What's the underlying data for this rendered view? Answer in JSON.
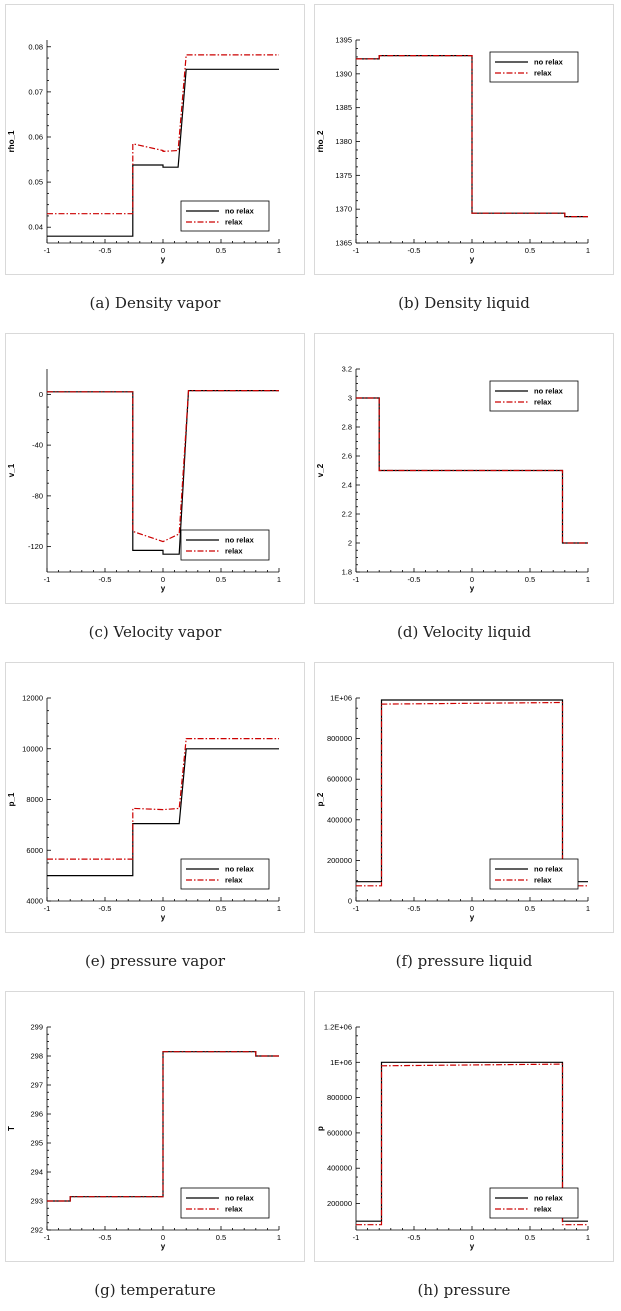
{
  "chart_data": [
    {
      "type": "line",
      "caption": "(a) Density vapor",
      "xlabel": "y",
      "ylabel": "rho_1",
      "xlim": [
        -1,
        1
      ],
      "ylim": [
        0.0365,
        0.0815
      ],
      "xticks": [
        -1,
        -0.5,
        0,
        0.5,
        1
      ],
      "xtick_labels": [
        "-1",
        "-0.5",
        "0",
        "0.5",
        "1"
      ],
      "yticks": [
        0.04,
        0.05,
        0.06,
        0.07,
        0.08
      ],
      "ytick_labels": [
        "0.04",
        "0.05",
        "0.06",
        "0.07",
        "0.08"
      ],
      "legend": "bottom-right",
      "series": [
        {
          "name": "no relax",
          "color": "#000000",
          "style": "solid",
          "x": [
            -1,
            -0.26,
            -0.26,
            0,
            0,
            0.13,
            0.2,
            0.2,
            1
          ],
          "y": [
            0.038,
            0.038,
            0.0538,
            0.0538,
            0.0533,
            0.0533,
            0.075,
            0.075,
            0.075
          ]
        },
        {
          "name": "relax",
          "color": "#cc0000",
          "style": "dashdot",
          "x": [
            -1,
            -0.26,
            -0.26,
            0,
            0,
            0.13,
            0.2,
            0.2,
            1
          ],
          "y": [
            0.043,
            0.043,
            0.0585,
            0.057,
            0.0568,
            0.057,
            0.0782,
            0.0782,
            0.0782
          ]
        }
      ]
    },
    {
      "type": "line",
      "caption": "(b) Density liquid",
      "xlabel": "y",
      "ylabel": "rho_2",
      "xlim": [
        -1,
        1
      ],
      "ylim": [
        1365,
        1395
      ],
      "xticks": [
        -1,
        -0.5,
        0,
        0.5,
        1
      ],
      "xtick_labels": [
        "-1",
        "-0.5",
        "0",
        "0.5",
        "1"
      ],
      "yticks": [
        1365,
        1370,
        1375,
        1380,
        1385,
        1390,
        1395
      ],
      "ytick_labels": [
        "1365",
        "1370",
        "1375",
        "1380",
        "1385",
        "1390",
        "1395"
      ],
      "legend": "top-right",
      "series": [
        {
          "name": "no relax",
          "color": "#000000",
          "style": "solid",
          "x": [
            -1,
            -0.8,
            -0.8,
            0,
            0,
            0.8,
            0.8,
            1
          ],
          "y": [
            1392.2,
            1392.2,
            1392.7,
            1392.7,
            1369.4,
            1369.4,
            1368.9,
            1368.9
          ]
        },
        {
          "name": "relax",
          "color": "#cc0000",
          "style": "dashdot",
          "x": [
            -1,
            -0.8,
            -0.8,
            0,
            0,
            0.8,
            0.8,
            1
          ],
          "y": [
            1392.2,
            1392.2,
            1392.7,
            1392.7,
            1369.4,
            1369.4,
            1368.9,
            1368.9
          ]
        }
      ]
    },
    {
      "type": "line",
      "caption": "(c) Velocity vapor",
      "xlabel": "y",
      "ylabel": "v_1",
      "xlim": [
        -1,
        1
      ],
      "ylim": [
        -140,
        20
      ],
      "xticks": [
        -1,
        -0.5,
        0,
        0.5,
        1
      ],
      "xtick_labels": [
        "-1",
        "-0.5",
        "0",
        "0.5",
        "1"
      ],
      "yticks": [
        -120,
        -80,
        -40,
        0
      ],
      "ytick_labels": [
        "-120",
        "-80",
        "-40",
        "0"
      ],
      "legend": "bottom-right",
      "series": [
        {
          "name": "no relax",
          "color": "#000000",
          "style": "solid",
          "x": [
            -1,
            -0.26,
            -0.26,
            0,
            0,
            0.14,
            0.22,
            1
          ],
          "y": [
            2,
            2,
            -123,
            -123,
            -126,
            -126,
            3,
            3
          ]
        },
        {
          "name": "relax",
          "color": "#cc0000",
          "style": "dashdot",
          "x": [
            -1,
            -0.26,
            -0.26,
            0,
            0.14,
            0.22,
            1
          ],
          "y": [
            2,
            2,
            -108,
            -116,
            -110,
            3,
            3
          ]
        }
      ]
    },
    {
      "type": "line",
      "caption": "(d) Velocity liquid",
      "xlabel": "y",
      "ylabel": "v_2",
      "xlim": [
        -1,
        1
      ],
      "ylim": [
        1.8,
        3.2
      ],
      "xticks": [
        -1,
        -0.5,
        0,
        0.5,
        1
      ],
      "xtick_labels": [
        "-1",
        "-0.5",
        "0",
        "0.5",
        "1"
      ],
      "yticks": [
        1.8,
        2,
        2.2,
        2.4,
        2.6,
        2.8,
        3,
        3.2
      ],
      "ytick_labels": [
        "1.8",
        "2",
        "2.2",
        "2.4",
        "2.6",
        "2.8",
        "3",
        "3.2"
      ],
      "legend": "top-right",
      "series": [
        {
          "name": "no relax",
          "color": "#000000",
          "style": "solid",
          "x": [
            -1,
            -0.8,
            -0.8,
            0.78,
            0.78,
            1
          ],
          "y": [
            3,
            3,
            2.5,
            2.5,
            2,
            2
          ]
        },
        {
          "name": "relax",
          "color": "#cc0000",
          "style": "dashdot",
          "x": [
            -1,
            -0.8,
            -0.8,
            0.78,
            0.78,
            1
          ],
          "y": [
            3,
            3,
            2.5,
            2.5,
            2,
            2
          ]
        }
      ]
    },
    {
      "type": "line",
      "caption": "(e) pressure vapor",
      "xlabel": "y",
      "ylabel": "p_1",
      "xlim": [
        -1,
        1
      ],
      "ylim": [
        4000,
        12000
      ],
      "xticks": [
        -1,
        -0.5,
        0,
        0.5,
        1
      ],
      "xtick_labels": [
        "-1",
        "-0.5",
        "0",
        "0.5",
        "1"
      ],
      "yticks": [
        4000,
        6000,
        8000,
        10000,
        12000
      ],
      "ytick_labels": [
        "4000",
        "6000",
        "8000",
        "10000",
        "12000"
      ],
      "legend": "bottom-right",
      "series": [
        {
          "name": "no relax",
          "color": "#000000",
          "style": "solid",
          "x": [
            -1,
            -0.26,
            -0.26,
            0.14,
            0.2,
            0.2,
            1
          ],
          "y": [
            5000,
            5000,
            7050,
            7050,
            10000,
            10000,
            10000
          ]
        },
        {
          "name": "relax",
          "color": "#cc0000",
          "style": "dashdot",
          "x": [
            -1,
            -0.26,
            -0.26,
            0,
            0.14,
            0.2,
            0.2,
            1
          ],
          "y": [
            5650,
            5650,
            7650,
            7600,
            7650,
            10400,
            10400,
            10400
          ]
        }
      ]
    },
    {
      "type": "line",
      "caption": "(f) pressure liquid",
      "xlabel": "y",
      "ylabel": "p_2",
      "xlim": [
        -1,
        1
      ],
      "ylim": [
        0,
        1000000
      ],
      "xticks": [
        -1,
        -0.5,
        0,
        0.5,
        1
      ],
      "xtick_labels": [
        "-1",
        "-0.5",
        "0",
        "0.5",
        "1"
      ],
      "yticks": [
        0,
        200000,
        400000,
        600000,
        800000,
        1000000
      ],
      "ytick_labels": [
        "0",
        "200000",
        "400000",
        "600000",
        "800000",
        "1E+06"
      ],
      "legend": "bottom-right",
      "series": [
        {
          "name": "no relax",
          "color": "#000000",
          "style": "solid",
          "x": [
            -1,
            -0.78,
            -0.78,
            0.78,
            0.78,
            1
          ],
          "y": [
            95000,
            95000,
            990000,
            990000,
            95000,
            95000
          ]
        },
        {
          "name": "relax",
          "color": "#cc0000",
          "style": "dashdot",
          "x": [
            -1,
            -0.78,
            -0.78,
            0.78,
            0.78,
            1
          ],
          "y": [
            75000,
            75000,
            970000,
            978000,
            75000,
            75000
          ]
        }
      ]
    },
    {
      "type": "line",
      "caption": "(g) temperature",
      "xlabel": "y",
      "ylabel": "T",
      "xlim": [
        -1,
        1
      ],
      "ylim": [
        292,
        299
      ],
      "xticks": [
        -1,
        -0.5,
        0,
        0.5,
        1
      ],
      "xtick_labels": [
        "-1",
        "-0.5",
        "0",
        "0.5",
        "1"
      ],
      "yticks": [
        292,
        293,
        294,
        295,
        296,
        297,
        298,
        299
      ],
      "ytick_labels": [
        "292",
        "293",
        "294",
        "295",
        "296",
        "297",
        "298",
        "299"
      ],
      "legend": "bottom-right",
      "series": [
        {
          "name": "no relax",
          "color": "#000000",
          "style": "solid",
          "x": [
            -1,
            -0.8,
            -0.8,
            0,
            0,
            0.8,
            0.8,
            1
          ],
          "y": [
            293,
            293,
            293.15,
            293.15,
            298.15,
            298.15,
            298,
            298
          ]
        },
        {
          "name": "relax",
          "color": "#cc0000",
          "style": "dashdot",
          "x": [
            -1,
            -0.8,
            -0.8,
            0,
            0,
            0.8,
            0.8,
            1
          ],
          "y": [
            293,
            293,
            293.15,
            293.15,
            298.15,
            298.15,
            298,
            298
          ]
        }
      ]
    },
    {
      "type": "line",
      "caption": "(h) pressure",
      "xlabel": "y",
      "ylabel": "p",
      "xlim": [
        -1,
        1
      ],
      "ylim": [
        50000,
        1200000
      ],
      "xticks": [
        -1,
        -0.5,
        0,
        0.5,
        1
      ],
      "xtick_labels": [
        "-1",
        "-0.5",
        "0",
        "0.5",
        "1"
      ],
      "yticks": [
        200000,
        400000,
        600000,
        800000,
        1000000,
        1200000
      ],
      "ytick_labels": [
        "200000",
        "400000",
        "600000",
        "800000",
        "1E+06",
        "1.2E+06"
      ],
      "legend": "bottom-right",
      "series": [
        {
          "name": "no relax",
          "color": "#000000",
          "style": "solid",
          "x": [
            -1,
            -0.78,
            -0.78,
            0.78,
            0.78,
            1
          ],
          "y": [
            100000,
            100000,
            1000000,
            1000000,
            100000,
            100000
          ]
        },
        {
          "name": "relax",
          "color": "#cc0000",
          "style": "dashdot",
          "x": [
            -1,
            -0.78,
            -0.78,
            0.78,
            0.78,
            1
          ],
          "y": [
            80000,
            80000,
            980000,
            990000,
            80000,
            80000
          ]
        }
      ]
    }
  ]
}
